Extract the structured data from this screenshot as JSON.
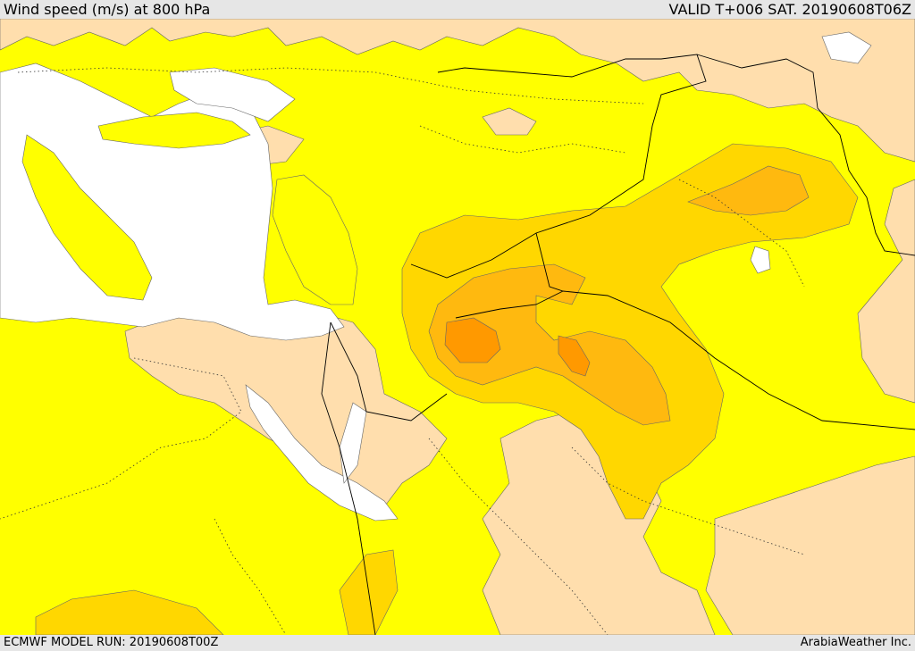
{
  "header": {
    "title": "Wind speed (m/s) at 800 hPa",
    "valid": "VALID T+006 SAT. 20190608T06Z"
  },
  "footer": {
    "model_run": "ECMWF MODEL RUN: 20190608T00Z",
    "credit": "ArabiaWeather Inc."
  },
  "palette": {
    "calm": "#ffffff",
    "light": "#ffdead",
    "moderate": "#ffff00",
    "fresh": "#ffd700",
    "strong": "#ffb90f",
    "very_strong": "#ff9900",
    "border": "#000000",
    "background": "#e6e6e6"
  }
}
